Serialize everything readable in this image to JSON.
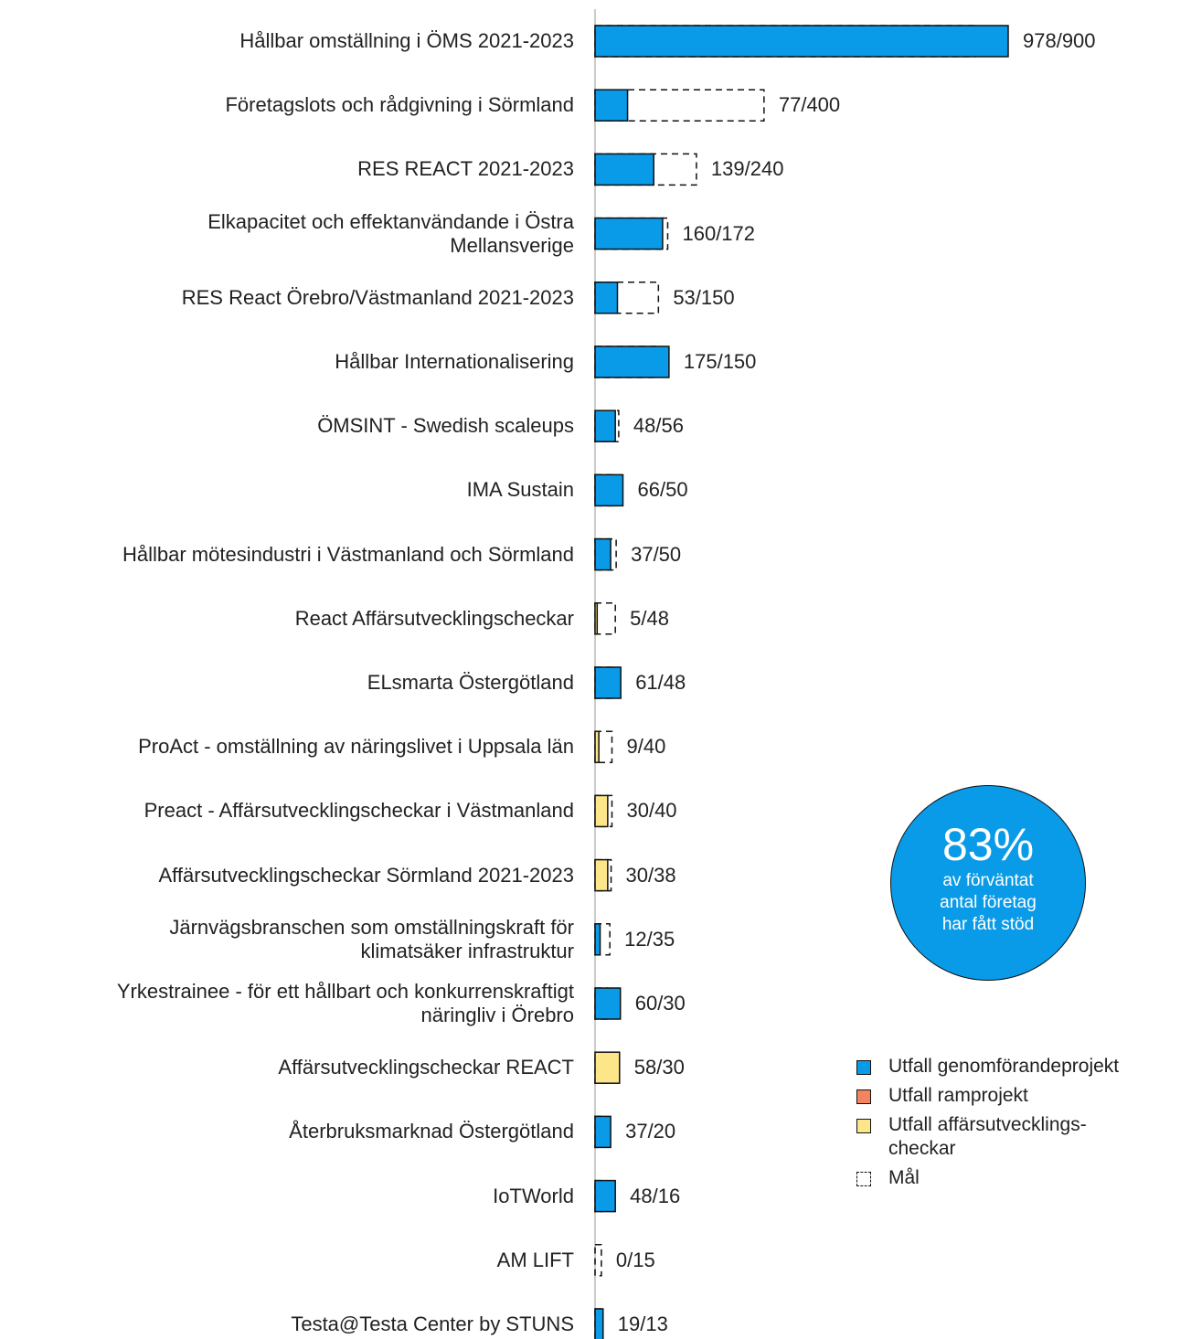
{
  "chart_data": {
    "type": "bar",
    "categories": [
      "Hållbar omställning i ÖMS 2021-2023",
      "Företagslots och rådgivning i Sörmland",
      "RES REACT 2021-2023",
      "Elkapacitet och effektanvändande i Östra\nMellansverige",
      "RES React Örebro/Västmanland 2021-2023",
      "Hållbar Internationalisering",
      "ÖMSINT - Swedish scaleups",
      "IMA Sustain",
      "Hållbar mötesindustri i Västmanland och Sörmland",
      "React Affärsutvecklingscheckar",
      "ELsmarta Östergötland",
      "ProAct - omställning av näringslivet i Uppsala län",
      "Preact - Affärsutvecklingscheckar i Västmanland",
      "Affärsutvecklingscheckar Sörmland 2021-2023",
      "Järnvägsbranschen som omställningskraft för\nklimatsäker infrastruktur",
      "Yrkestrainee - för ett hållbart och konkurrenskraftigt\nnäringliv i Örebro",
      "Affärsutvecklingscheckar REACT",
      "Återbruksmarknad Östergötland",
      "IoTWorld",
      "AM LIFT",
      "Testa@Testa Center by STUNS"
    ],
    "series": [
      {
        "name": "Utfall genomförandeprojekt",
        "color": "#0a9be8",
        "values": [
          978,
          77,
          139,
          160,
          53,
          175,
          48,
          66,
          37,
          null,
          61,
          null,
          null,
          null,
          12,
          60,
          null,
          37,
          48,
          0,
          19
        ]
      },
      {
        "name": "Utfall ramprojekt",
        "color": "#f4845f",
        "values": [
          null,
          null,
          null,
          null,
          null,
          null,
          null,
          null,
          null,
          null,
          null,
          null,
          null,
          null,
          null,
          null,
          null,
          null,
          null,
          null,
          null
        ]
      },
      {
        "name": "Utfall affärsutvecklings-\ncheckar",
        "color": "#fde58a",
        "values": [
          null,
          null,
          null,
          null,
          null,
          null,
          null,
          null,
          null,
          5,
          null,
          9,
          30,
          30,
          null,
          null,
          58,
          null,
          null,
          null,
          null
        ]
      },
      {
        "name": "Mål",
        "color": "none",
        "values": [
          900,
          400,
          240,
          172,
          150,
          150,
          56,
          50,
          50,
          48,
          48,
          40,
          40,
          38,
          35,
          30,
          30,
          20,
          16,
          15,
          13
        ]
      }
    ],
    "value_labels": [
      "978/900",
      "77/400",
      "139/240",
      "160/172",
      "53/150",
      "175/150",
      "48/56",
      "66/50",
      "37/50",
      "5/48",
      "61/48",
      "9/40",
      "30/40",
      "30/38",
      "12/35",
      "60/30",
      "58/30",
      "37/20",
      "48/16",
      "0/15",
      "19/13"
    ],
    "callout": {
      "value": "83%",
      "text": "av förväntat\nantal företag\nhar fått stöd"
    }
  }
}
